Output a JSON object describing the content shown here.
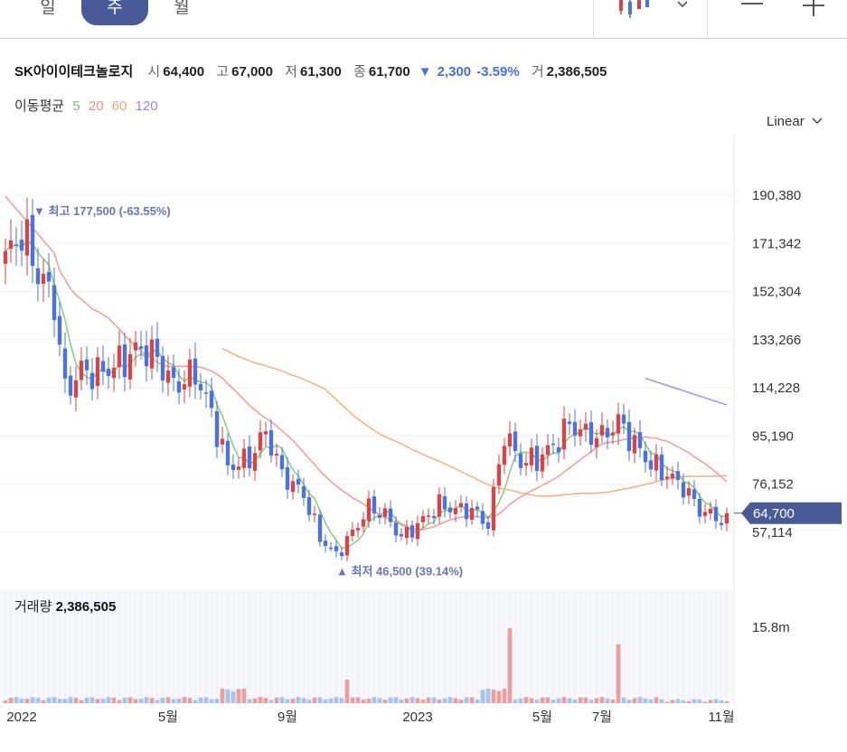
{
  "tabs": [
    {
      "label": "일",
      "active": false
    },
    {
      "label": "주",
      "active": true
    },
    {
      "label": "월",
      "active": false
    }
  ],
  "header": {
    "name": "SK아이이테크놀로지",
    "open_label": "시",
    "open": "64,400",
    "high_label": "고",
    "high": "67,000",
    "low_label": "저",
    "low": "61,300",
    "close_label": "종",
    "close": "61,700",
    "change_arrow": "▼",
    "change": "2,300",
    "change_pct": "-3.59%",
    "volume_label": "거",
    "volume": "2,386,505"
  },
  "ma_legend": {
    "title": "이동평균",
    "items": [
      {
        "label": "5",
        "color": "#7cc46c"
      },
      {
        "label": "20",
        "color": "#ee8f8f"
      },
      {
        "label": "60",
        "color": "#f0a86e"
      },
      {
        "label": "120",
        "color": "#9b7ef0"
      }
    ]
  },
  "scale": {
    "label": "Linear"
  },
  "volume_panel": {
    "label": "거래량",
    "value": "2,386,505",
    "axis_tick": "15.8m"
  },
  "colors": {
    "up": "#d64545",
    "down": "#4a74dc",
    "up_vol": "#e9a0a0",
    "down_vol": "#a7c3ef",
    "accent": "#4a5a96"
  },
  "chart_data": {
    "type": "candlestick",
    "y_axis_ticks": [
      "190,380",
      "171,342",
      "152,304",
      "133,266",
      "114,228",
      "95,190",
      "76,152",
      "57,114"
    ],
    "y_tick_values": [
      190380,
      171342,
      152304,
      133266,
      114228,
      95190,
      76152,
      57114
    ],
    "current_price_label": "64,700",
    "current_price": 64700,
    "x_axis_labels": [
      {
        "label": "2022",
        "index": 3
      },
      {
        "label": "5월",
        "index": 30
      },
      {
        "label": "9월",
        "index": 52
      },
      {
        "label": "2023",
        "index": 76
      },
      {
        "label": "5월",
        "index": 99
      },
      {
        "label": "7월",
        "index": 110
      },
      {
        "label": "11월",
        "index": 132
      }
    ],
    "annotations": {
      "high": {
        "arrow": "▼",
        "label": "최고",
        "value": "177,500",
        "pct": "(-63.55%)",
        "index": 3,
        "price": 177500
      },
      "low": {
        "arrow": "▲",
        "label": "최저",
        "value": "46,500",
        "pct": "(39.14%)",
        "index": 62,
        "price": 46500
      }
    },
    "close_keypoints": [
      [
        0,
        165000
      ],
      [
        3,
        176000
      ],
      [
        6,
        160000
      ],
      [
        9,
        148000
      ],
      [
        11,
        113000
      ],
      [
        14,
        121000
      ],
      [
        17,
        120000
      ],
      [
        21,
        124000
      ],
      [
        25,
        130000
      ],
      [
        28,
        126000
      ],
      [
        31,
        115000
      ],
      [
        35,
        120000
      ],
      [
        38,
        104000
      ],
      [
        41,
        83000
      ],
      [
        45,
        86000
      ],
      [
        48,
        97000
      ],
      [
        51,
        80000
      ],
      [
        55,
        72000
      ],
      [
        58,
        55000
      ],
      [
        61,
        48000
      ],
      [
        64,
        57000
      ],
      [
        67,
        67000
      ],
      [
        70,
        64000
      ],
      [
        73,
        55000
      ],
      [
        76,
        60000
      ],
      [
        80,
        68000
      ],
      [
        83,
        66000
      ],
      [
        86,
        66000
      ],
      [
        89,
        60000
      ],
      [
        92,
        96000
      ],
      [
        95,
        85000
      ],
      [
        98,
        86000
      ],
      [
        101,
        91000
      ],
      [
        104,
        100000
      ],
      [
        107,
        96000
      ],
      [
        110,
        95000
      ],
      [
        113,
        101000
      ],
      [
        116,
        92000
      ],
      [
        119,
        84000
      ],
      [
        122,
        80000
      ],
      [
        125,
        75000
      ],
      [
        128,
        66000
      ],
      [
        132,
        62000
      ],
      [
        133,
        67000
      ]
    ],
    "ma": {
      "ma60_from": 40,
      "ma120_from": 118
    },
    "volume_spikes": [
      {
        "index": 63,
        "value": 5.0
      },
      {
        "index": 93,
        "value": 15.8
      },
      {
        "index": 113,
        "value": 12.4
      }
    ],
    "volume_axis_max": 15.8
  }
}
